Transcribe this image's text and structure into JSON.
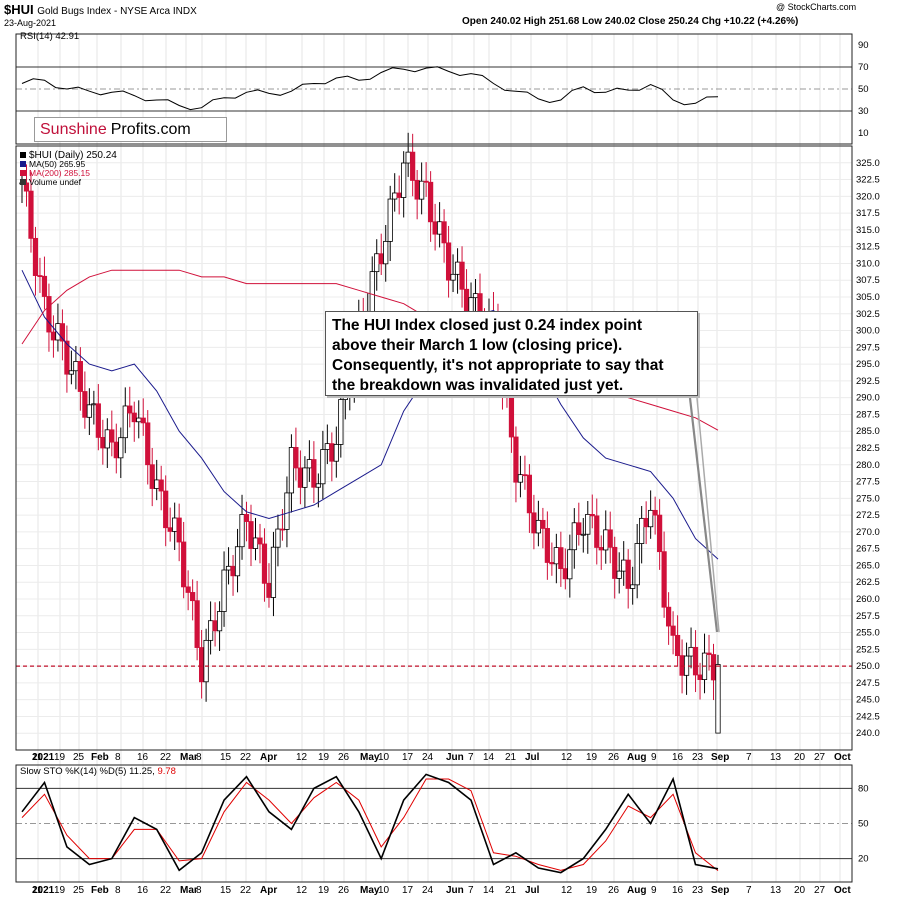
{
  "header": {
    "symbol": "$HUI",
    "name": "Gold Bugs Index - NYSE Arca INDX",
    "date": "23-Aug-2021",
    "quote": "Open 240.02  High 251.68  Low 240.02  Close 250.24  Chg +10.22 (+4.26%)",
    "watermark": "@ StockCharts.com"
  },
  "logo": {
    "part1": "Sunshine",
    "part2": "Profits.com"
  },
  "annotation": "The HUI Index closed just 0.24 index point above their March 1 low (closing price). Consequently, it's not appropriate to say that the breakdown was invalidated just yet.",
  "rsi_panel": {
    "label": "RSI(14) 42.91",
    "ticks": [
      "90",
      "70",
      "50",
      "30",
      "10"
    ]
  },
  "price_panel": {
    "legend": [
      "$HUI (Daily) 250.24",
      "MA(50) 265.95",
      "MA(200) 285.15",
      "Volume undef"
    ]
  },
  "sto_panel": {
    "label": "Slow STO %K(14) %D(5) 11.25,",
    "label_d": "9.78",
    "ticks": [
      "80",
      "50",
      "20"
    ]
  },
  "x_axis": [
    "2021",
    "11",
    "19",
    "25",
    "Feb",
    "8",
    "16",
    "22",
    "Mar",
    "8",
    "15",
    "22",
    "Apr",
    "12",
    "19",
    "26",
    "May",
    "10",
    "17",
    "24",
    "Jun",
    "7",
    "14",
    "21",
    "Jul",
    "12",
    "19",
    "26",
    "Aug",
    "9",
    "16",
    "23",
    "Sep",
    "7",
    "13",
    "20",
    "27",
    "Oct"
  ],
  "colors": {
    "down": "#d0103a",
    "up": "#ffffff",
    "ma50": "#1a1a8c",
    "ma200": "#d0103a",
    "support": "#c0102a",
    "sto_d": "#e00000"
  },
  "chart_data": [
    {
      "type": "line",
      "title": "RSI(14) 42.91",
      "x": [
        "Jan 5",
        "Jan 11",
        "Jan 19",
        "Jan 25",
        "Feb 1",
        "Feb 8",
        "Feb 16",
        "Feb 22",
        "Mar 1",
        "Mar 8",
        "Mar 15",
        "Mar 22",
        "Apr 1",
        "Apr 12",
        "Apr 19",
        "Apr 26",
        "May 3",
        "May 10",
        "May 17",
        "May 24",
        "Jun 1",
        "Jun 7",
        "Jun 14",
        "Jun 21",
        "Jul 1",
        "Jul 12",
        "Jul 19",
        "Jul 26",
        "Aug 2",
        "Aug 9",
        "Aug 16",
        "Aug 23"
      ],
      "series": [
        {
          "name": "RSI(14)",
          "values": [
            55,
            58,
            50,
            48,
            47,
            44,
            40,
            35,
            33,
            42,
            47,
            46,
            48,
            55,
            60,
            58,
            65,
            68,
            69,
            66,
            64,
            55,
            48,
            41,
            40,
            52,
            47,
            49,
            54,
            40,
            37,
            43
          ]
        }
      ],
      "ylim": [
        0,
        100
      ],
      "reference_lines": [
        70,
        50,
        30
      ]
    },
    {
      "type": "line",
      "title": "$HUI (Daily) 250.24",
      "x": [
        "Jan 5",
        "Jan 11",
        "Jan 19",
        "Jan 25",
        "Feb 1",
        "Feb 8",
        "Feb 16",
        "Feb 22",
        "Mar 1",
        "Mar 8",
        "Mar 15",
        "Mar 22",
        "Apr 1",
        "Apr 12",
        "Apr 19",
        "Apr 26",
        "May 3",
        "May 10",
        "May 17",
        "May 24",
        "Jun 1",
        "Jun 7",
        "Jun 14",
        "Jun 21",
        "Jul 1",
        "Jul 12",
        "Jul 19",
        "Jul 26",
        "Aug 2",
        "Aug 9",
        "Aug 16",
        "Aug 23"
      ],
      "series": [
        {
          "name": "$HUI (Daily) 250.24",
          "values": [
            322,
            303,
            296,
            288,
            282,
            289,
            276,
            268,
            250,
            262,
            272,
            262,
            280,
            278,
            284,
            300,
            312,
            325,
            320,
            310,
            304,
            300,
            280,
            270,
            264,
            272,
            268,
            262,
            275,
            252,
            250,
            250.24
          ]
        },
        {
          "name": "MA(50) 265.95",
          "values": [
            309,
            302,
            298,
            295,
            294,
            295,
            291,
            285,
            281,
            276,
            273,
            272,
            273,
            274,
            276,
            278,
            280,
            288,
            293,
            298,
            302,
            303,
            300,
            295,
            289,
            284,
            281,
            280,
            279,
            275,
            269,
            265.95
          ]
        },
        {
          "name": "MA(200) 285.15",
          "values": [
            298,
            303,
            306,
            308,
            309,
            309,
            309,
            309,
            308,
            308,
            307,
            307,
            307,
            307,
            307,
            306,
            305,
            304,
            302,
            300,
            299,
            297,
            294,
            293,
            292,
            291,
            291,
            290,
            289,
            288,
            287,
            285.15
          ]
        }
      ],
      "ylim": [
        237.5,
        327.5
      ],
      "reference_lines": [
        250
      ]
    },
    {
      "type": "line",
      "title": "Slow STO %K(14) %D(5) 11.25, 9.78",
      "x": [
        "Jan 5",
        "Jan 11",
        "Jan 19",
        "Jan 25",
        "Feb 1",
        "Feb 8",
        "Feb 16",
        "Feb 22",
        "Mar 1",
        "Mar 8",
        "Mar 15",
        "Mar 22",
        "Apr 1",
        "Apr 12",
        "Apr 19",
        "Apr 26",
        "May 3",
        "May 10",
        "May 17",
        "May 24",
        "Jun 1",
        "Jun 7",
        "Jun 14",
        "Jun 21",
        "Jul 1",
        "Jul 12",
        "Jul 19",
        "Jul 26",
        "Aug 2",
        "Aug 9",
        "Aug 16",
        "Aug 23"
      ],
      "series": [
        {
          "name": "%K(14)",
          "values": [
            60,
            85,
            30,
            15,
            20,
            55,
            45,
            10,
            25,
            70,
            90,
            60,
            45,
            80,
            90,
            60,
            20,
            70,
            92,
            85,
            70,
            15,
            25,
            12,
            8,
            20,
            45,
            75,
            50,
            88,
            15,
            11.25
          ]
        },
        {
          "name": "%D(5)",
          "values": [
            55,
            75,
            40,
            20,
            20,
            45,
            45,
            18,
            20,
            60,
            85,
            70,
            50,
            72,
            85,
            70,
            30,
            55,
            88,
            88,
            78,
            25,
            22,
            15,
            10,
            15,
            35,
            65,
            55,
            75,
            25,
            9.78
          ]
        }
      ],
      "ylim": [
        0,
        100
      ],
      "reference_lines": [
        80,
        50,
        20
      ]
    }
  ]
}
